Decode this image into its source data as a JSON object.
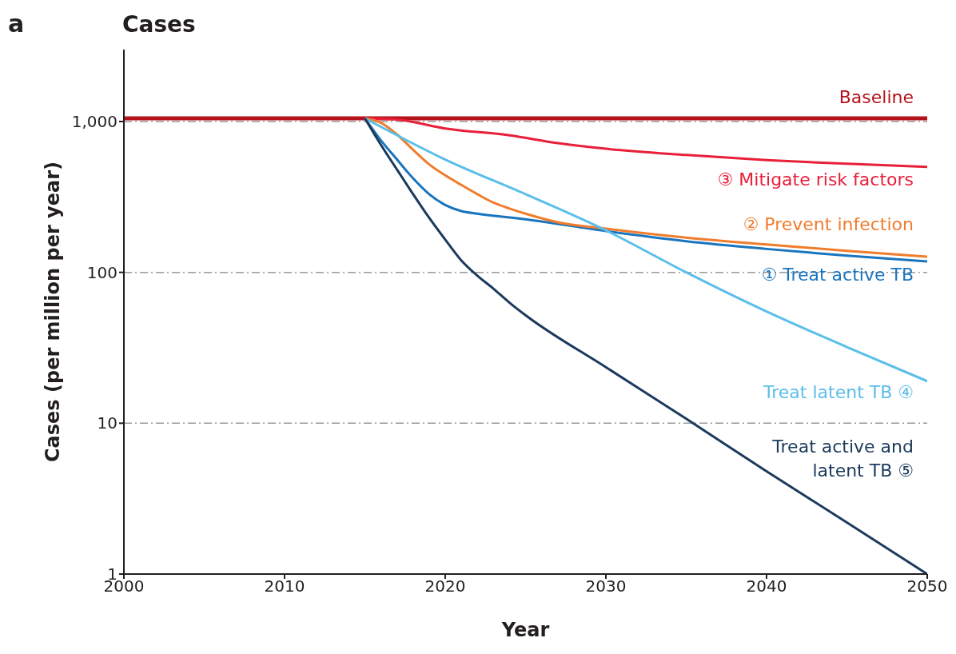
{
  "chart_data": {
    "type": "line",
    "title": "Cases",
    "xlabel": "Year",
    "ylabel": "Cases (per million per year)",
    "annotations": [
      "a"
    ],
    "log": "y",
    "grid": "y",
    "xlim": [
      2000,
      2050
    ],
    "xticks": [
      2000,
      2010,
      2020,
      2030,
      2040,
      2050
    ],
    "ylim": [
      1,
      3000
    ],
    "yticks": [
      1,
      10,
      100,
      {
        "value": 1000,
        "label": "1,000"
      }
    ],
    "series": [
      {
        "name": "Baseline",
        "color": "#b5121b",
        "x": [
          2000,
          2050
        ],
        "values": [
          1050,
          1050
        ]
      },
      {
        "name": "③ Mitigate risk factors",
        "color": "#e8203a",
        "x": [
          2015,
          2017,
          2020,
          2024,
          2027,
          2030,
          2035,
          2040,
          2045,
          2050
        ],
        "values": [
          1050,
          1030,
          900,
          810,
          720,
          660,
          600,
          555,
          525,
          500
        ]
      },
      {
        "name": "② Prevent infection",
        "color": "#f07d2e",
        "x": [
          2015,
          2016,
          2017,
          2018,
          2019,
          2020,
          2021,
          2022,
          2023,
          2024,
          2025,
          2027,
          2030,
          2035,
          2040,
          2045,
          2050
        ],
        "values": [
          1050,
          980,
          820,
          650,
          520,
          440,
          380,
          330,
          290,
          265,
          245,
          215,
          195,
          170,
          153,
          139,
          127
        ]
      },
      {
        "name": "① Treat active TB",
        "color": "#1a75bf",
        "x": [
          2015,
          2016,
          2017,
          2018,
          2019,
          2020,
          2021,
          2022,
          2025,
          2030,
          2035,
          2040,
          2045,
          2050
        ],
        "values": [
          1050,
          750,
          560,
          420,
          330,
          280,
          255,
          245,
          225,
          188,
          161,
          143,
          129,
          118
        ]
      },
      {
        "name": "Treat latent TB ④",
        "color": "#5bbfea",
        "x": [
          2015,
          2020,
          2025,
          2030,
          2035,
          2040,
          2045,
          2050
        ],
        "values": [
          1050,
          560,
          330,
          190,
          100,
          55,
          32,
          19
        ]
      },
      {
        "name": "Treat active and latent TB ⑤",
        "color": "#1b3a5c",
        "x": [
          2015,
          2016,
          2017,
          2018,
          2019,
          2020,
          2021,
          2022,
          2023,
          2024,
          2025,
          2030,
          2035,
          2040,
          2045,
          2050
        ],
        "values": [
          1050,
          700,
          480,
          330,
          230,
          165,
          120,
          95,
          78,
          63,
          52,
          23.5,
          10.7,
          4.8,
          2.2,
          1
        ]
      }
    ]
  }
}
